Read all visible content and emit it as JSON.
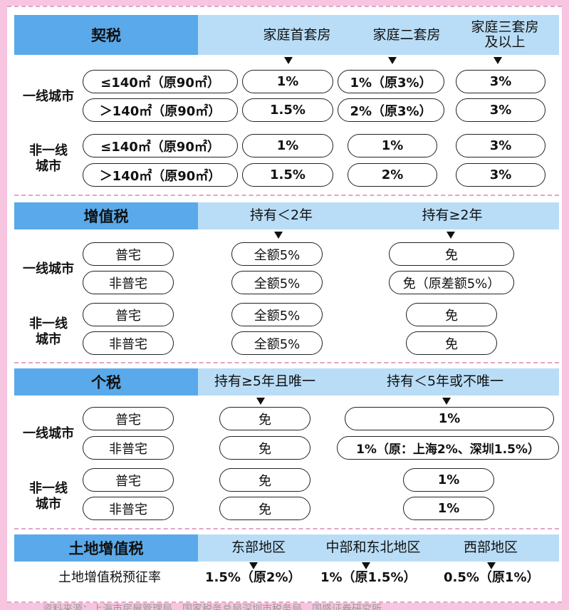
{
  "deed_tax": {
    "title": "契税",
    "cols": [
      "家庭首套房",
      "家庭二套房",
      "家庭三套房\n及以上"
    ],
    "tier1_label": "一线城市",
    "other_label": "非一线\n城市",
    "rows": [
      {
        "area": "≤140㎡（原90㎡）",
        "v1": "1%",
        "v2": "1%（原3%）",
        "v3": "3%"
      },
      {
        "area": "＞140㎡（原90㎡）",
        "v1": "1.5%",
        "v2": "2%（原3%）",
        "v3": "3%"
      },
      {
        "area": "≤140㎡（原90㎡）",
        "v1": "1%",
        "v2": "1%",
        "v3": "3%"
      },
      {
        "area": "＞140㎡（原90㎡）",
        "v1": "1.5%",
        "v2": "2%",
        "v3": "3%"
      }
    ]
  },
  "vat": {
    "title": "增值税",
    "cols": [
      "持有＜2年",
      "持有≥2年"
    ],
    "tier1_label": "一线城市",
    "other_label": "非一线\n城市",
    "rows": [
      {
        "type": "普宅",
        "v1": "全额5%",
        "v2": "免"
      },
      {
        "type": "非普宅",
        "v1": "全额5%",
        "v2": "免（原差额5%）"
      },
      {
        "type": "普宅",
        "v1": "全额5%",
        "v2": "免"
      },
      {
        "type": "非普宅",
        "v1": "全额5%",
        "v2": "免"
      }
    ]
  },
  "income_tax": {
    "title": "个税",
    "cols": [
      "持有≥5年且唯一",
      "持有＜5年或不唯一"
    ],
    "tier1_label": "一线城市",
    "other_label": "非一线\n城市",
    "rows": [
      {
        "type": "普宅",
        "v1": "免",
        "v2": "1%"
      },
      {
        "type": "非普宅",
        "v1": "免",
        "v2": "1%（原：上海2%、深圳1.5%）"
      },
      {
        "type": "普宅",
        "v1": "免",
        "v2": "1%"
      },
      {
        "type": "非普宅",
        "v1": "免",
        "v2": "1%"
      }
    ]
  },
  "land_vat": {
    "title": "土地增值税",
    "cols": [
      "东部地区",
      "中部和东北地区",
      "西部地区"
    ],
    "row_label": "土地增值税预征率",
    "values": [
      "1.5%（原2%）",
      "1%（原1.5%）",
      "0.5%（原1%）"
    ]
  },
  "footer": "资料来源：上海市房屋管理局、国家税务总局深圳市税务局、国盛证券研究所",
  "colors": {
    "accent": "#5aa9ea",
    "header_bg": "#b9ddf7",
    "border": "#f7c5e0"
  }
}
